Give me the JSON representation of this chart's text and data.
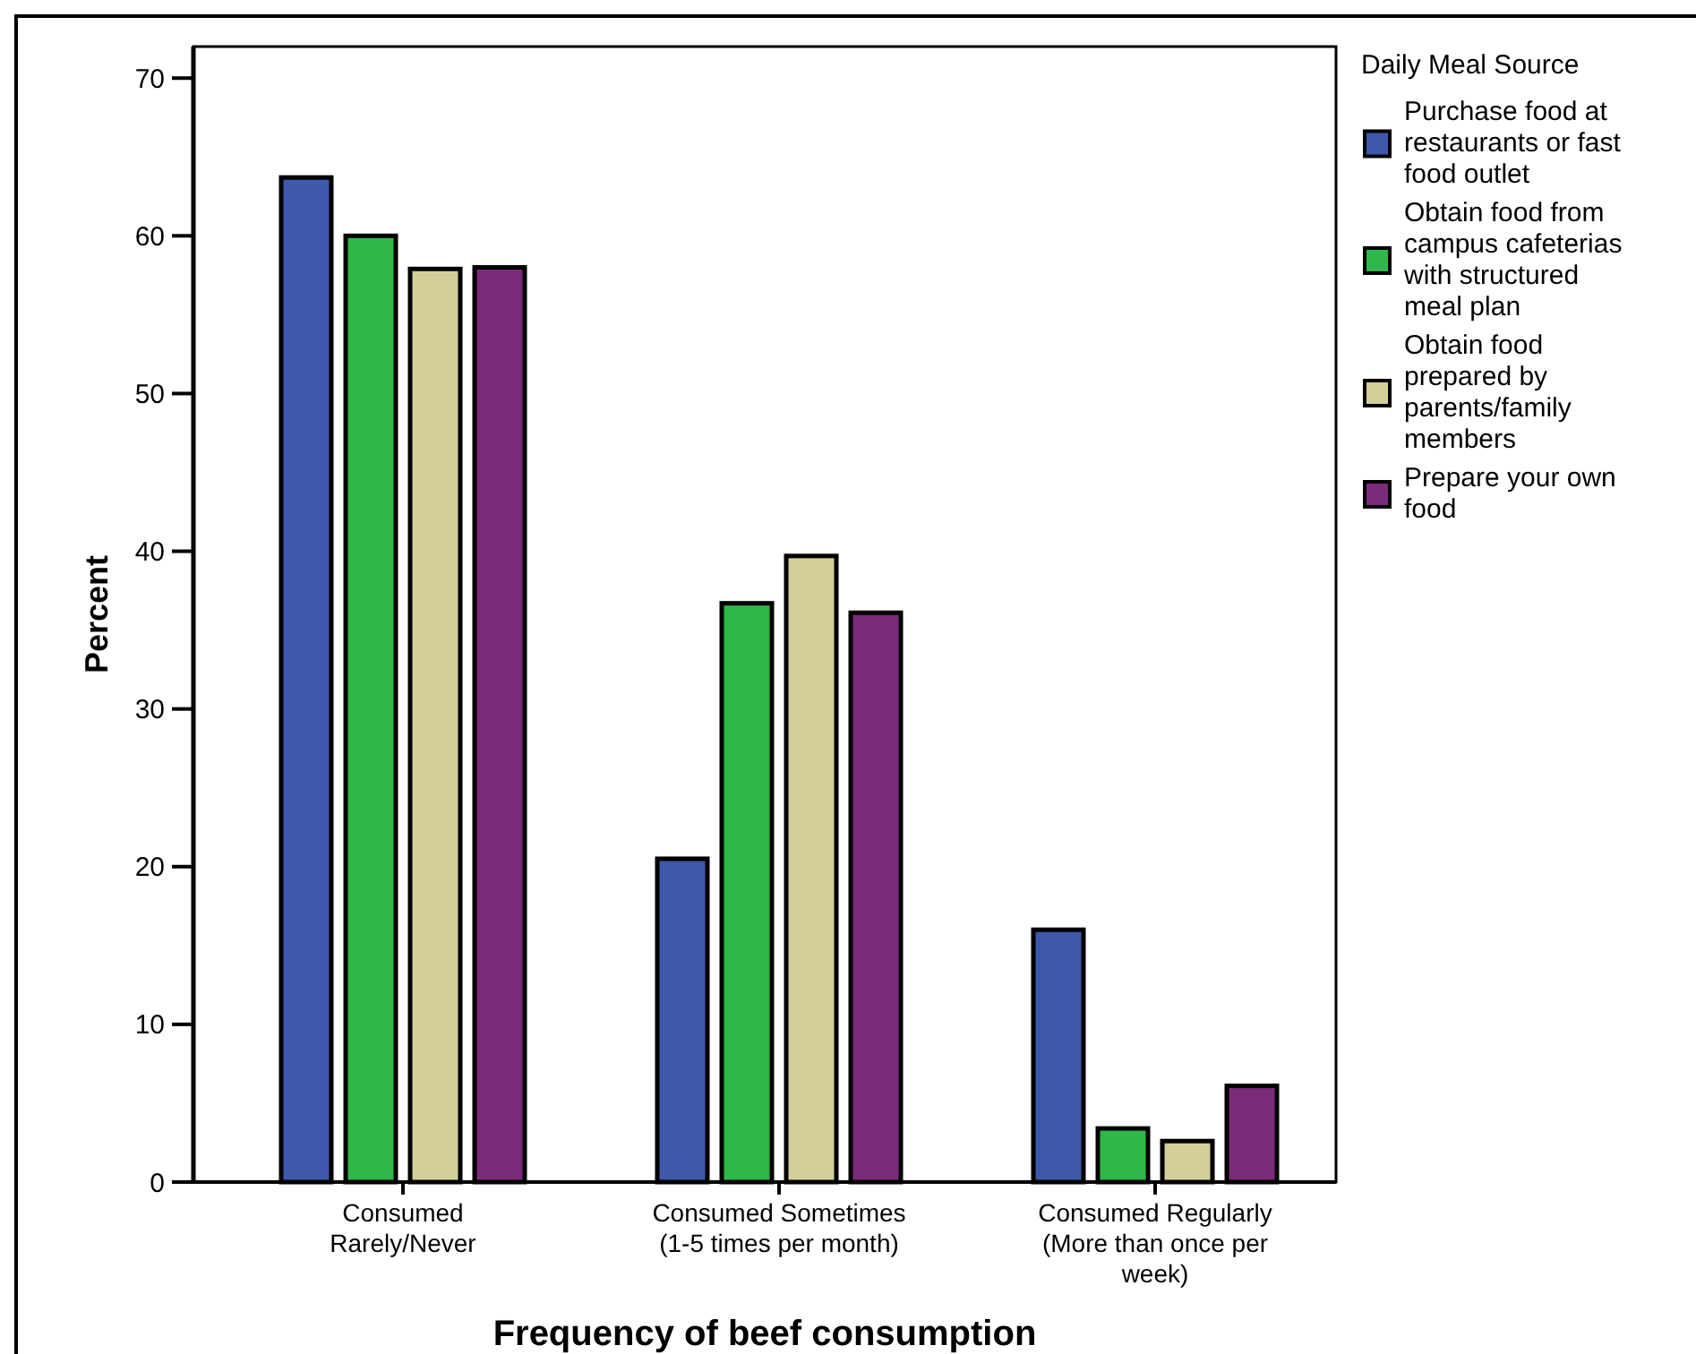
{
  "chart_data": {
    "type": "bar",
    "xlabel": "Frequency of beef consumption",
    "ylabel": "Percent",
    "legend_title": "Daily Meal Source",
    "legend": "right",
    "categories": [
      "Consumed Rarely/Never",
      "Consumed Sometimes (1-5 times per month)",
      "Consumed Regularly (More than once per week)"
    ],
    "series": [
      {
        "name": "Purchase food at restaurants or fast food outlet",
        "color": "#3e58ac",
        "values": [
          63.7,
          20.5,
          16.0
        ]
      },
      {
        "name": "Obtain food from campus cafeterias with structured meal plan",
        "color": "#2fb84a",
        "values": [
          60.0,
          36.7,
          3.4
        ]
      },
      {
        "name": "Obtain food prepared by parents/family members",
        "color": "#d3cf98",
        "values": [
          57.9,
          39.7,
          2.6
        ]
      },
      {
        "name": "Prepare your own food",
        "color": "#7b2a7c",
        "values": [
          58.0,
          36.1,
          6.1
        ]
      }
    ],
    "ylim": [
      0,
      72
    ],
    "yticks": [
      0,
      10,
      20,
      30,
      40,
      50,
      60,
      70
    ],
    "grid": false
  }
}
